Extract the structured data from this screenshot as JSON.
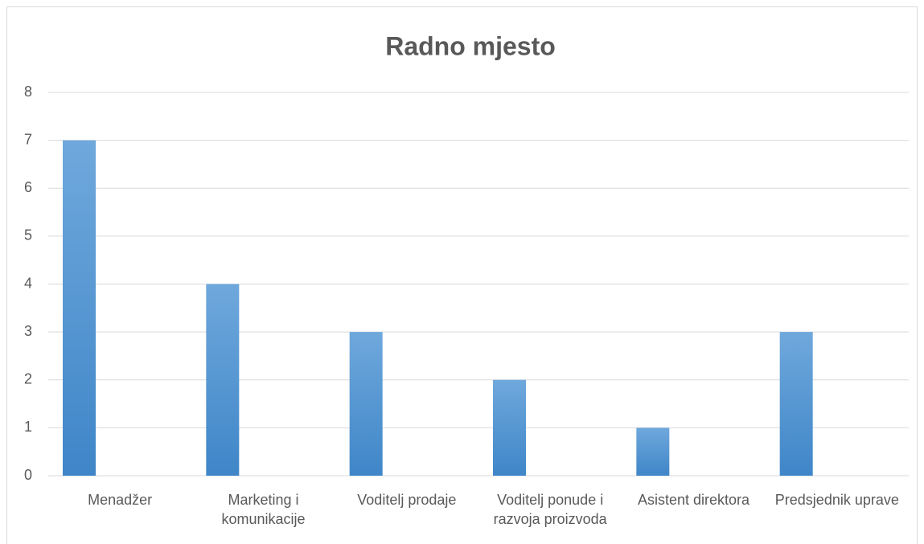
{
  "chart_data": {
    "type": "bar",
    "title": "Radno mjesto",
    "categories": [
      "Menadžer",
      "Marketing i komunikacije",
      "Voditelj prodaje",
      "Voditelj ponude i razvoja proizvoda",
      "Asistent direktora",
      "Predsjednik uprave"
    ],
    "values": [
      7,
      4,
      3,
      2,
      1,
      3
    ],
    "color": "#5b9bd5",
    "ylim": [
      0,
      8
    ],
    "yticks": [
      0,
      1,
      2,
      3,
      4,
      5,
      6,
      7,
      8
    ],
    "grid": true
  }
}
